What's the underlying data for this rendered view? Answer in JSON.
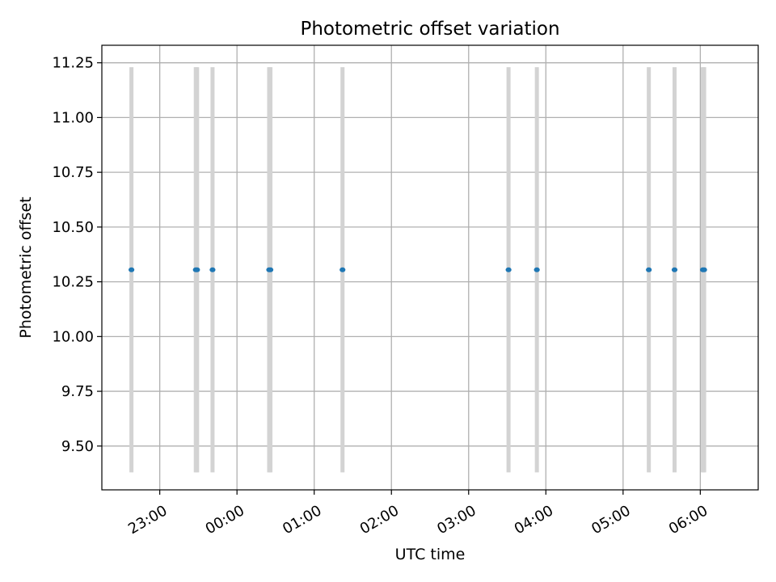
{
  "chart_data": {
    "type": "scatter",
    "title": "Photometric offset variation",
    "xlabel": "UTC time",
    "ylabel": "Photometric offset",
    "grid": true,
    "legend": "none",
    "x_axis_type": "time",
    "xlim": [
      "22:15",
      "06:45"
    ],
    "ylim": [
      9.3,
      11.33
    ],
    "x_ticks": [
      "23:00",
      "00:00",
      "01:00",
      "02:00",
      "03:00",
      "04:00",
      "05:00",
      "06:00"
    ],
    "y_ticks": [
      "9.50",
      "9.75",
      "10.00",
      "10.25",
      "10.50",
      "10.75",
      "11.00",
      "11.25"
    ],
    "series": [
      {
        "x": [
          "22:38",
          "23:28",
          "23:29",
          "23:41",
          "00:25",
          "00:26",
          "01:22",
          "03:31",
          "03:53",
          "05:20",
          "05:40",
          "06:02",
          "06:03"
        ],
        "y": [
          10.305,
          10.305,
          10.305,
          10.305,
          10.305,
          10.305,
          10.305,
          10.305,
          10.305,
          10.305,
          10.305,
          10.305,
          10.305
        ],
        "error_low": [
          9.38,
          9.38,
          9.38,
          9.38,
          9.38,
          9.38,
          9.38,
          9.38,
          9.38,
          9.38,
          9.38,
          9.38,
          9.38
        ],
        "error_high": [
          11.23,
          11.23,
          11.23,
          11.23,
          11.23,
          11.23,
          11.23,
          11.23,
          11.23,
          11.23,
          11.23,
          11.23,
          11.23
        ]
      }
    ],
    "colors": {
      "point": "#1f77b4",
      "errorbar": "#d3d3d3",
      "grid": "#b0b0b0",
      "axes": "#000000"
    }
  }
}
